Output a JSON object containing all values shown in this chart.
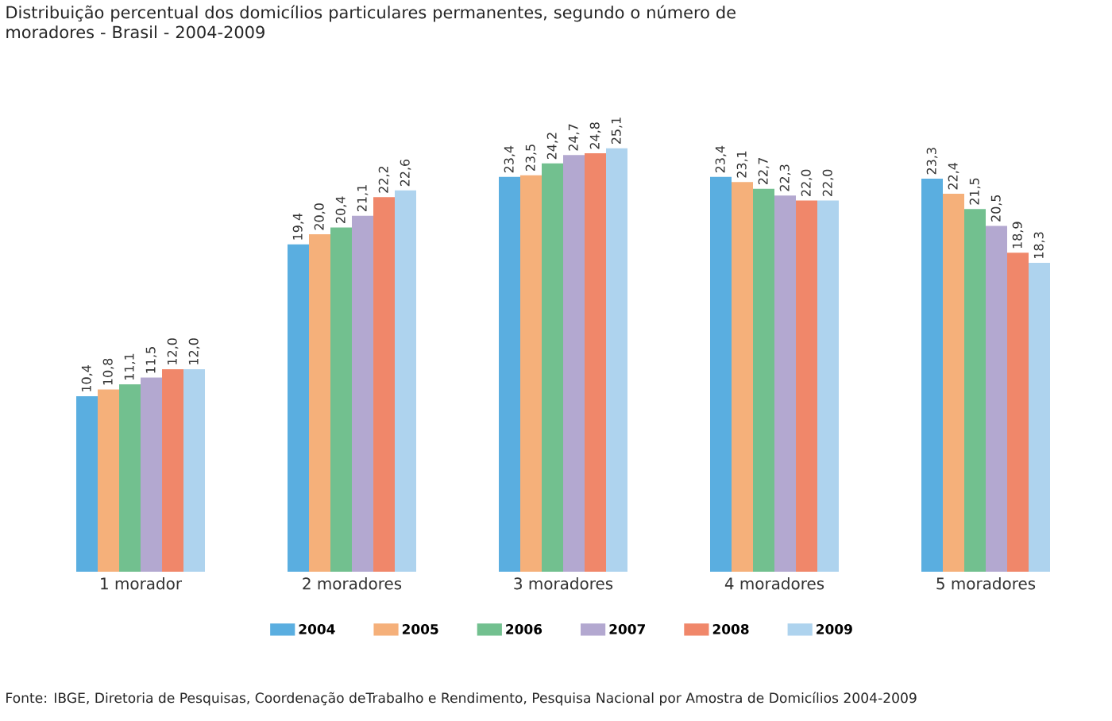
{
  "chart_data": {
    "type": "bar",
    "title": "Distribuição percentual dos domicílios particulares permanentes, segundo o número de moradores - Brasil - 2004-2009",
    "categories": [
      "1 morador",
      "2 moradores",
      "3 moradores",
      "4 moradores",
      "5 moradores"
    ],
    "series": [
      {
        "name": "2004",
        "color": "#5aaee0",
        "values": [
          10.4,
          19.4,
          23.4,
          23.4,
          23.3
        ],
        "value_labels": [
          "10,4",
          "19,4",
          "23,4",
          "23,4",
          "23,3"
        ]
      },
      {
        "name": "2005",
        "color": "#f5b07a",
        "values": [
          10.8,
          20.0,
          23.5,
          23.1,
          22.4
        ],
        "value_labels": [
          "10,8",
          "20,0",
          "23,5",
          "23,1",
          "22,4"
        ]
      },
      {
        "name": "2006",
        "color": "#72c08f",
        "values": [
          11.1,
          20.4,
          24.2,
          22.7,
          21.5
        ],
        "value_labels": [
          "11,1",
          "20,4",
          "24,2",
          "22,7",
          "21,5"
        ]
      },
      {
        "name": "2007",
        "color": "#b3a8d0",
        "values": [
          11.5,
          21.1,
          24.7,
          22.3,
          20.5
        ],
        "value_labels": [
          "11,5",
          "21,1",
          "24,7",
          "22,3",
          "20,5"
        ]
      },
      {
        "name": "2008",
        "color": "#f0876a",
        "values": [
          12.0,
          22.2,
          24.8,
          22.0,
          18.9
        ],
        "value_labels": [
          "12,0",
          "22,2",
          "24,8",
          "22,0",
          "18,9"
        ]
      },
      {
        "name": "2009",
        "color": "#aed3ee",
        "values": [
          12.0,
          22.6,
          25.1,
          22.0,
          18.3
        ],
        "value_labels": [
          "12,0",
          "22,6",
          "25,1",
          "22,0",
          "18,3"
        ]
      }
    ],
    "tick_labels": "x",
    "legend": "bottom",
    "grid": false,
    "annotations": [
      "Fonte: IBGE, Diretoria de Pesquisas, Coordenação deTrabalho e Rendimento, Pesquisa Nacional por Amostra de Domicílios 2004-2009"
    ]
  }
}
